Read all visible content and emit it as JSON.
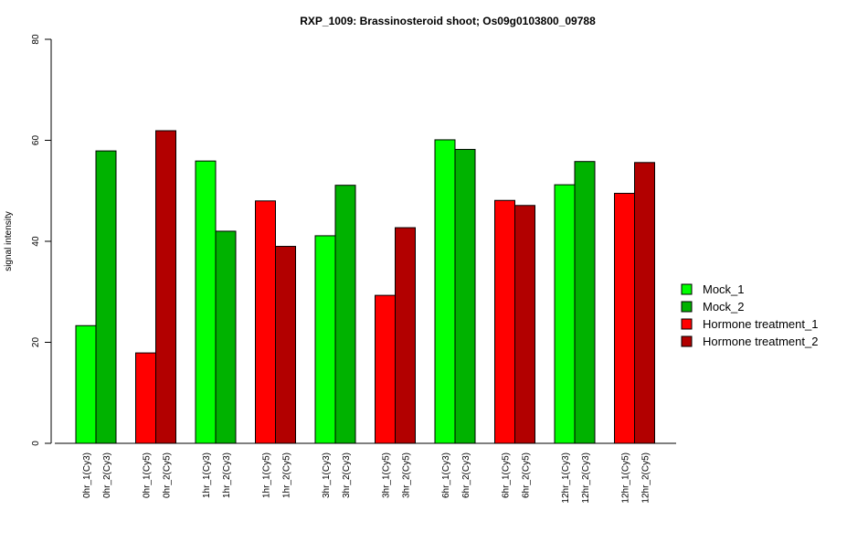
{
  "chart_data": {
    "type": "bar",
    "title": "RXP_1009: Brassinosteroid shoot; Os09g0103800_09788",
    "xlabel": "",
    "ylabel": "signal intensity",
    "ylim": [
      0,
      80
    ],
    "yticks": [
      0,
      20,
      40,
      60,
      80
    ],
    "grid": false,
    "legend_position": "right",
    "series_legend": [
      {
        "name": "Mock_1",
        "color": "#00ff00"
      },
      {
        "name": "Mock_2",
        "color": "#00b200"
      },
      {
        "name": "Hormone treatment_1",
        "color": "#ff0000"
      },
      {
        "name": "Hormone treatment_2",
        "color": "#b20000"
      }
    ],
    "bars": [
      {
        "label": "0hr_1(Cy3)",
        "value": 23.3,
        "series": 0
      },
      {
        "label": "0hr_2(Cy3)",
        "value": 57.9,
        "series": 1
      },
      {
        "label": "0hr_1(Cy5)",
        "value": 17.9,
        "series": 2
      },
      {
        "label": "0hr_2(Cy5)",
        "value": 61.9,
        "series": 3
      },
      {
        "label": "1hr_1(Cy3)",
        "value": 55.9,
        "series": 0
      },
      {
        "label": "1hr_2(Cy3)",
        "value": 42.0,
        "series": 1
      },
      {
        "label": "1hr_1(Cy5)",
        "value": 48.0,
        "series": 2
      },
      {
        "label": "1hr_2(Cy5)",
        "value": 39.0,
        "series": 3
      },
      {
        "label": "3hr_1(Cy3)",
        "value": 41.1,
        "series": 0
      },
      {
        "label": "3hr_2(Cy3)",
        "value": 51.1,
        "series": 1
      },
      {
        "label": "3hr_1(Cy5)",
        "value": 29.3,
        "series": 2
      },
      {
        "label": "3hr_2(Cy5)",
        "value": 42.7,
        "series": 3
      },
      {
        "label": "6hr_1(Cy3)",
        "value": 60.1,
        "series": 0
      },
      {
        "label": "6hr_2(Cy3)",
        "value": 58.2,
        "series": 1
      },
      {
        "label": "6hr_1(Cy5)",
        "value": 48.1,
        "series": 2
      },
      {
        "label": "6hr_2(Cy5)",
        "value": 47.1,
        "series": 3
      },
      {
        "label": "12hr_1(Cy3)",
        "value": 51.2,
        "series": 0
      },
      {
        "label": "12hr_2(Cy3)",
        "value": 55.8,
        "series": 1
      },
      {
        "label": "12hr_1(Cy5)",
        "value": 49.5,
        "series": 2
      },
      {
        "label": "12hr_2(Cy5)",
        "value": 55.6,
        "series": 3
      }
    ]
  }
}
